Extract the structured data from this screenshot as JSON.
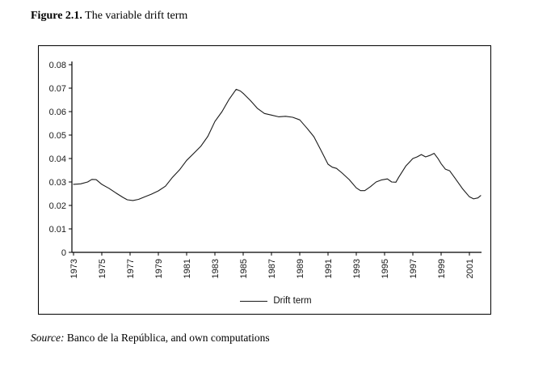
{
  "figure": {
    "label": "Figure 2.1.",
    "title": " The variable drift term"
  },
  "source": {
    "label": "Source:",
    "text": " Banco de la República, and own computations"
  },
  "colors": {
    "line": "#1a1a1a",
    "axis": "#000000",
    "tick_text": "#1a1a1a"
  },
  "chart_data": {
    "type": "line",
    "title": "",
    "xlabel": "",
    "ylabel": "",
    "ylim": [
      0,
      0.08
    ],
    "xlim": [
      1973,
      2002
    ],
    "grid": false,
    "legend_position": "bottom-center",
    "y_tick_labels": [
      "0.08",
      "0.07",
      "0.06",
      "0.05",
      "0.04",
      "0.03",
      "0.02",
      "0.01",
      "0"
    ],
    "x_tick_labels": [
      "1973",
      "1975",
      "1977",
      "1979",
      "1981",
      "1983",
      "1985",
      "1987",
      "1989",
      "1991",
      "1993",
      "1995",
      "1997",
      "1999",
      "2001"
    ],
    "legend": {
      "entries": [
        "Drift term"
      ]
    },
    "series": [
      {
        "name": "Drift term",
        "color": "#1a1a1a",
        "points": [
          [
            1973.0,
            0.029
          ],
          [
            1973.5,
            0.0292
          ],
          [
            1974.0,
            0.03
          ],
          [
            1974.3,
            0.0311
          ],
          [
            1974.6,
            0.031
          ],
          [
            1975.0,
            0.029
          ],
          [
            1975.5,
            0.0273
          ],
          [
            1976.0,
            0.0253
          ],
          [
            1976.5,
            0.0234
          ],
          [
            1976.8,
            0.0224
          ],
          [
            1977.2,
            0.0221
          ],
          [
            1977.6,
            0.0226
          ],
          [
            1978.0,
            0.0236
          ],
          [
            1978.5,
            0.0248
          ],
          [
            1979.0,
            0.0262
          ],
          [
            1979.5,
            0.0282
          ],
          [
            1980.0,
            0.032
          ],
          [
            1980.5,
            0.0352
          ],
          [
            1981.0,
            0.0392
          ],
          [
            1981.5,
            0.0422
          ],
          [
            1982.0,
            0.0452
          ],
          [
            1982.5,
            0.0495
          ],
          [
            1983.0,
            0.0558
          ],
          [
            1983.5,
            0.06
          ],
          [
            1984.0,
            0.0652
          ],
          [
            1984.5,
            0.0695
          ],
          [
            1984.8,
            0.0688
          ],
          [
            1985.0,
            0.0678
          ],
          [
            1985.5,
            0.0648
          ],
          [
            1986.0,
            0.0614
          ],
          [
            1986.5,
            0.0592
          ],
          [
            1987.0,
            0.0585
          ],
          [
            1987.5,
            0.0578
          ],
          [
            1988.0,
            0.058
          ],
          [
            1988.5,
            0.0576
          ],
          [
            1989.0,
            0.0565
          ],
          [
            1989.5,
            0.053
          ],
          [
            1990.0,
            0.0493
          ],
          [
            1990.5,
            0.0435
          ],
          [
            1991.0,
            0.0376
          ],
          [
            1991.3,
            0.0363
          ],
          [
            1991.6,
            0.0358
          ],
          [
            1992.0,
            0.0338
          ],
          [
            1992.5,
            0.031
          ],
          [
            1993.0,
            0.0275
          ],
          [
            1993.3,
            0.0263
          ],
          [
            1993.6,
            0.0263
          ],
          [
            1994.0,
            0.028
          ],
          [
            1994.4,
            0.03
          ],
          [
            1994.8,
            0.0309
          ],
          [
            1995.2,
            0.0313
          ],
          [
            1995.5,
            0.03
          ],
          [
            1995.8,
            0.0299
          ],
          [
            1996.0,
            0.032
          ],
          [
            1996.5,
            0.0368
          ],
          [
            1997.0,
            0.04
          ],
          [
            1997.3,
            0.0407
          ],
          [
            1997.6,
            0.0417
          ],
          [
            1997.9,
            0.0407
          ],
          [
            1998.2,
            0.0413
          ],
          [
            1998.5,
            0.0422
          ],
          [
            1998.8,
            0.0398
          ],
          [
            1999.0,
            0.0378
          ],
          [
            1999.3,
            0.0355
          ],
          [
            1999.6,
            0.0348
          ],
          [
            2000.0,
            0.0315
          ],
          [
            2000.5,
            0.0272
          ],
          [
            2001.0,
            0.0237
          ],
          [
            2001.3,
            0.0228
          ],
          [
            2001.6,
            0.0232
          ],
          [
            2001.8,
            0.0242
          ]
        ]
      }
    ]
  }
}
